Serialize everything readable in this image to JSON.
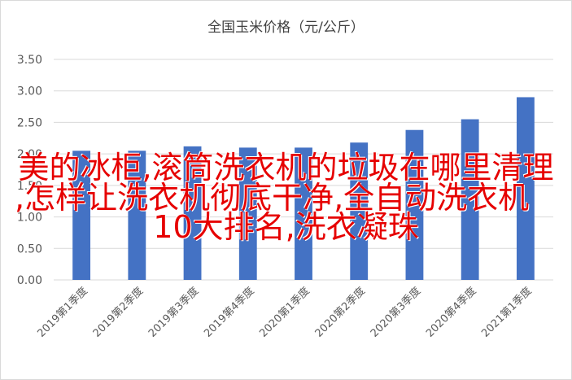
{
  "chart_data": {
    "type": "bar",
    "title": "全国玉米价格（元/公斤）",
    "categories": [
      "2019第1季度",
      "2019第2季度",
      "2019第3季度",
      "2019第4季度",
      "2020第1季度",
      "2020第2季度",
      "2020第3季度",
      "2020第4季度",
      "2021第1季度"
    ],
    "values": [
      2.05,
      2.05,
      2.12,
      2.1,
      2.1,
      2.18,
      2.38,
      2.55,
      2.9
    ],
    "ylim": [
      0,
      3.5
    ],
    "yticks": [
      "0.00",
      "0.50",
      "1.00",
      "1.50",
      "2.00",
      "2.50",
      "3.00",
      "3.50"
    ],
    "grid": true,
    "bar_color": "#4472c4",
    "xlabel": "",
    "ylabel": ""
  },
  "overlay": {
    "line1": "美的冰柜,滚筒洗衣机的垃圾在哪里清理",
    "line2": ",怎样让洗衣机彻底干净,全自动洗衣机",
    "line3": "10大排名,洗衣凝珠",
    "color": "#e60000"
  }
}
